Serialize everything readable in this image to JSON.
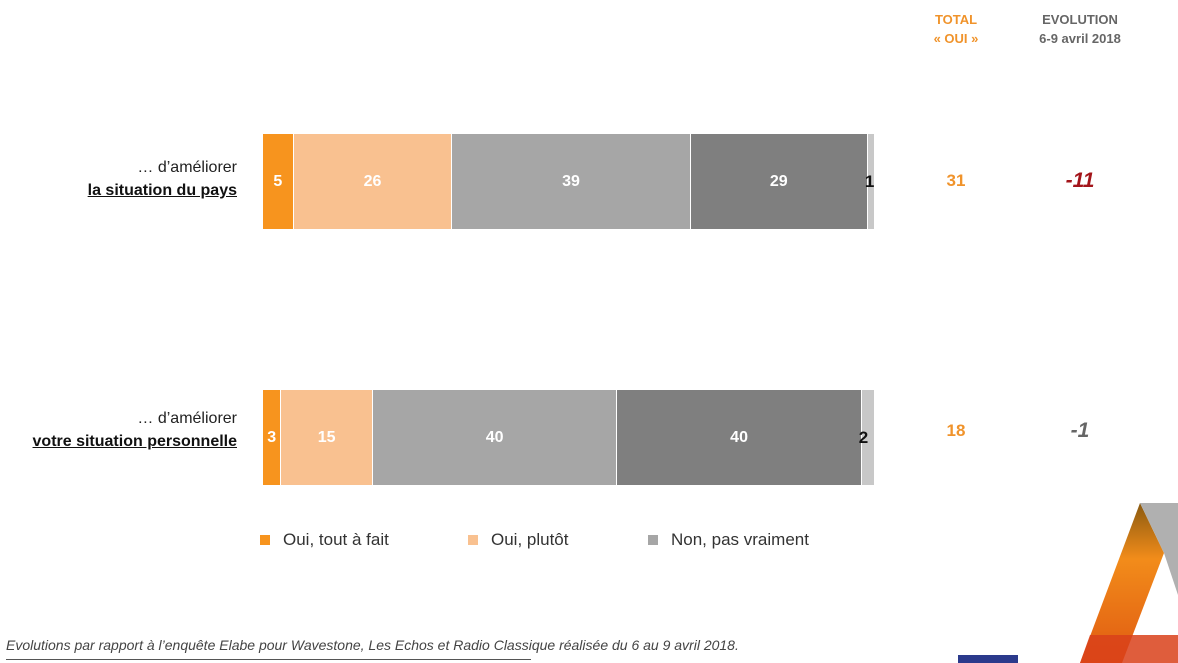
{
  "headers": {
    "total_line1": "TOTAL",
    "total_line2": "« OUI »",
    "evol_line1": "EVOLUTION",
    "evol_line2": "6-9 avril 2018"
  },
  "chart_data": {
    "type": "bar",
    "orientation": "horizontal-stacked-100",
    "title": "",
    "xlabel": "",
    "ylabel": "",
    "categories": [
      {
        "prefix": "… d’améliorer",
        "label": "la situation du pays"
      },
      {
        "prefix": "… d’améliorer",
        "label": "votre situation personnelle"
      }
    ],
    "series": [
      {
        "name": "Oui, tout à fait",
        "color": "#f7941e",
        "values": [
          5,
          3
        ]
      },
      {
        "name": "Oui, plutôt",
        "color": "#f9c190",
        "values": [
          26,
          15
        ]
      },
      {
        "name": "",
        "color": "#a6a6a6",
        "values": [
          39,
          40
        ]
      },
      {
        "name": "",
        "color": "#7f7f7f",
        "values": [
          29,
          40
        ]
      },
      {
        "name": "",
        "color": "#c8c8c8",
        "values": [
          1,
          2
        ]
      }
    ],
    "legend": [
      {
        "name": "Oui, tout à fait",
        "color": "#f7941e"
      },
      {
        "name": "Oui, plutôt",
        "color": "#f9c190"
      },
      {
        "name": "Non, pas vraiment",
        "color": "#a6a6a6"
      }
    ],
    "legend_position": "bottom",
    "total_oui": [
      "31",
      "18"
    ],
    "evolution": [
      {
        "text": "-11",
        "color": "#a3141a"
      },
      {
        "text": "-1",
        "color": "#666666"
      }
    ]
  },
  "footnote": "Evolutions par rapport à l’enquête Elabe pour Wavestone, Les Echos et Radio Classique réalisée du 6 au 9 avril 2018."
}
